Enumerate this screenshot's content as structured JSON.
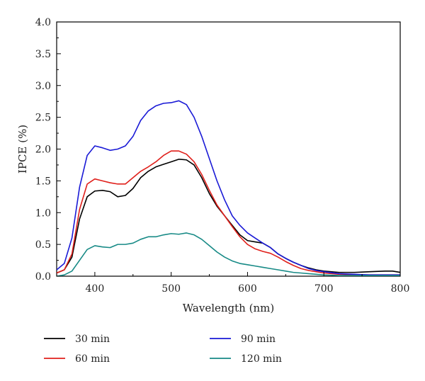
{
  "chart_data": {
    "type": "line",
    "xlabel": "Wavelength (nm)",
    "ylabel": "IPCE (%)",
    "xlim": [
      350,
      800
    ],
    "ylim": [
      0,
      4.0
    ],
    "xticks": [
      400,
      500,
      600,
      700,
      800
    ],
    "xtick_labels": [
      "400",
      "500",
      "600",
      "700",
      "800"
    ],
    "yticks": [
      0,
      0.5,
      1.0,
      1.5,
      2.0,
      2.5,
      3.0,
      3.5,
      4.0
    ],
    "ytick_labels": [
      "0.0",
      "0.5",
      "1.0",
      "1.5",
      "2.0",
      "2.5",
      "3.0",
      "3.5",
      "4.0"
    ],
    "grid": false,
    "legend_position": "bottom",
    "series": [
      {
        "name": "30 min",
        "color": "#000000",
        "x": [
          350,
          360,
          370,
          380,
          390,
          400,
          410,
          420,
          430,
          440,
          450,
          460,
          470,
          480,
          490,
          500,
          510,
          520,
          530,
          540,
          550,
          560,
          570,
          580,
          590,
          600,
          610,
          620,
          630,
          640,
          650,
          660,
          670,
          680,
          690,
          700,
          720,
          740,
          760,
          780,
          790,
          800
        ],
        "y": [
          0.05,
          0.1,
          0.3,
          0.9,
          1.25,
          1.34,
          1.35,
          1.33,
          1.25,
          1.27,
          1.38,
          1.55,
          1.65,
          1.72,
          1.76,
          1.8,
          1.84,
          1.83,
          1.75,
          1.55,
          1.3,
          1.1,
          0.95,
          0.8,
          0.65,
          0.56,
          0.54,
          0.52,
          0.45,
          0.35,
          0.28,
          0.22,
          0.17,
          0.13,
          0.1,
          0.08,
          0.06,
          0.06,
          0.07,
          0.08,
          0.08,
          0.06
        ]
      },
      {
        "name": "60 min",
        "color": "#e0201b",
        "x": [
          350,
          360,
          370,
          380,
          390,
          400,
          410,
          420,
          430,
          440,
          450,
          460,
          470,
          480,
          490,
          500,
          510,
          520,
          530,
          540,
          550,
          560,
          570,
          580,
          590,
          600,
          610,
          620,
          630,
          640,
          650,
          660,
          670,
          680,
          690,
          700,
          720,
          740,
          760,
          780,
          790,
          800
        ],
        "y": [
          0.05,
          0.1,
          0.35,
          1.05,
          1.45,
          1.53,
          1.5,
          1.47,
          1.45,
          1.45,
          1.55,
          1.65,
          1.72,
          1.8,
          1.9,
          1.97,
          1.97,
          1.92,
          1.8,
          1.6,
          1.35,
          1.12,
          0.95,
          0.78,
          0.62,
          0.5,
          0.43,
          0.39,
          0.36,
          0.3,
          0.23,
          0.17,
          0.12,
          0.09,
          0.07,
          0.05,
          0.03,
          0.02,
          0.02,
          0.02,
          0.02,
          0.02
        ]
      },
      {
        "name": "90 min",
        "color": "#1a1ad6",
        "x": [
          350,
          360,
          370,
          380,
          390,
          400,
          410,
          420,
          430,
          440,
          450,
          460,
          470,
          480,
          490,
          500,
          510,
          520,
          530,
          540,
          550,
          560,
          570,
          580,
          590,
          600,
          610,
          620,
          630,
          640,
          650,
          660,
          670,
          680,
          690,
          700,
          720,
          740,
          760,
          780,
          790,
          800
        ],
        "y": [
          0.1,
          0.2,
          0.6,
          1.4,
          1.9,
          2.05,
          2.02,
          1.98,
          2.0,
          2.05,
          2.2,
          2.45,
          2.6,
          2.68,
          2.72,
          2.73,
          2.76,
          2.7,
          2.5,
          2.2,
          1.85,
          1.5,
          1.2,
          0.95,
          0.8,
          0.68,
          0.6,
          0.52,
          0.45,
          0.35,
          0.28,
          0.22,
          0.17,
          0.12,
          0.09,
          0.07,
          0.04,
          0.03,
          0.02,
          0.02,
          0.02,
          0.02
        ]
      },
      {
        "name": "120 min",
        "color": "#178a86",
        "x": [
          350,
          360,
          370,
          380,
          390,
          400,
          410,
          420,
          430,
          440,
          450,
          460,
          470,
          480,
          490,
          500,
          510,
          520,
          530,
          540,
          550,
          560,
          570,
          580,
          590,
          600,
          610,
          620,
          630,
          640,
          650,
          660,
          670,
          680,
          690,
          700,
          720,
          740,
          760,
          780,
          790,
          800
        ],
        "y": [
          0.0,
          0.02,
          0.08,
          0.25,
          0.42,
          0.48,
          0.46,
          0.45,
          0.5,
          0.5,
          0.52,
          0.58,
          0.62,
          0.62,
          0.65,
          0.67,
          0.66,
          0.68,
          0.65,
          0.58,
          0.48,
          0.38,
          0.3,
          0.24,
          0.2,
          0.18,
          0.16,
          0.14,
          0.12,
          0.1,
          0.08,
          0.06,
          0.05,
          0.04,
          0.03,
          0.02,
          0.01,
          0.01,
          0.01,
          0.01,
          0.01,
          0.01
        ]
      }
    ]
  }
}
